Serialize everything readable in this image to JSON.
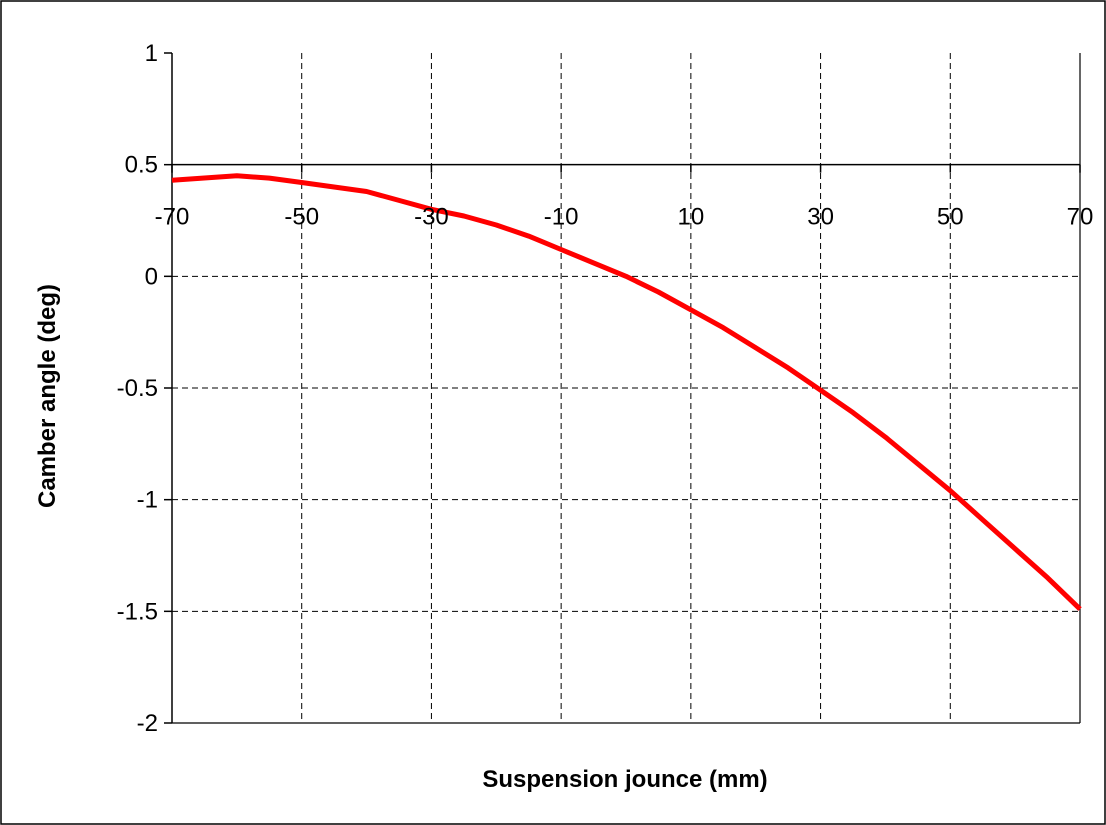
{
  "chart_data": {
    "type": "line",
    "title": "",
    "xlabel": "Suspension jounce (mm)",
    "ylabel": "Camber angle (deg)",
    "xlim": [
      -70,
      70
    ],
    "ylim": [
      -2,
      1
    ],
    "x_ticks": [
      -70,
      -50,
      -30,
      -10,
      10,
      30,
      50,
      70
    ],
    "x_tick_labels": [
      "-70",
      "-50",
      "-30",
      "-10",
      "10",
      "30",
      "50",
      "70"
    ],
    "y_ticks": [
      1,
      0.5,
      0,
      -0.5,
      -1,
      -1.5,
      -2
    ],
    "y_tick_labels": [
      "1",
      "0.5",
      "0",
      "-0.5",
      "-1",
      "-1.5",
      "-2"
    ],
    "x_axis_crosses_at_y": 0.5,
    "grid": "dashed, both axes",
    "legend": "none",
    "series": [
      {
        "color": "#ff0000",
        "x": [
          -70,
          -60,
          -55,
          -50,
          -45,
          -40,
          -35,
          -30,
          -25,
          -20,
          -15,
          -10,
          -5,
          0,
          5,
          10,
          15,
          20,
          25,
          30,
          35,
          40,
          45,
          50,
          55,
          60,
          65,
          70
        ],
        "y": [
          0.43,
          0.45,
          0.44,
          0.42,
          0.4,
          0.38,
          0.34,
          0.3,
          0.27,
          0.23,
          0.18,
          0.12,
          0.06,
          0.0,
          -0.07,
          -0.15,
          -0.23,
          -0.32,
          -0.41,
          -0.51,
          -0.61,
          -0.72,
          -0.84,
          -0.96,
          -1.09,
          -1.22,
          -1.35,
          -1.49
        ]
      }
    ]
  }
}
